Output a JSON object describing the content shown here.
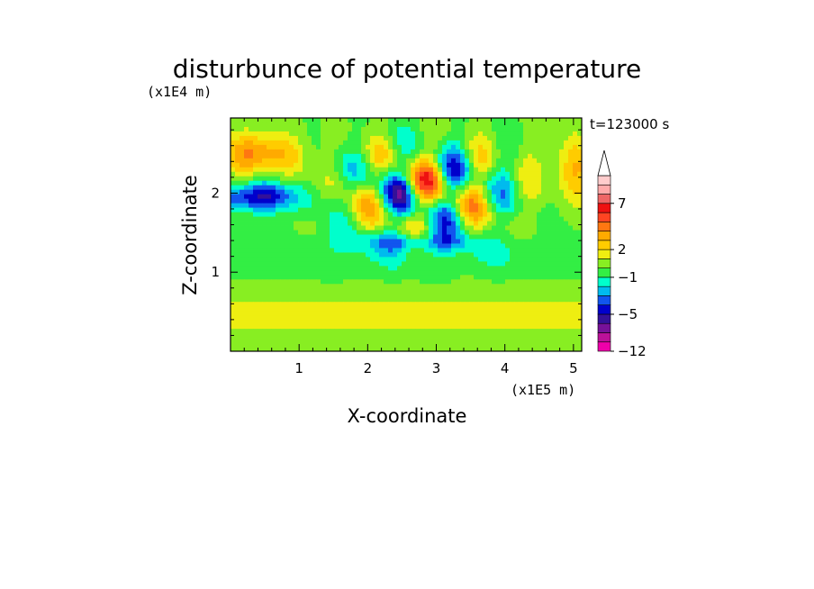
{
  "chart_data": {
    "type": "heatmap",
    "title": "disturbunce of potential temperature",
    "time_label": "t=123000 s",
    "x_axis": {
      "label": "X-coordinate",
      "unit": "(x1E5 m)",
      "range": [
        0,
        5.12
      ],
      "ticks": [
        1,
        2,
        3,
        4,
        5
      ],
      "tick_labels": [
        "1",
        "2",
        "3",
        "4",
        "5"
      ]
    },
    "y_axis": {
      "label": "Z-coordinate",
      "unit": "(x1E4 m)",
      "range": [
        0,
        2.95
      ],
      "ticks": [
        1,
        2
      ],
      "tick_labels": [
        "1",
        "2"
      ]
    },
    "colorbar": {
      "levels": [
        -12,
        -10,
        -8,
        -6,
        -5,
        -4,
        -3,
        -2,
        -1,
        0,
        1,
        2,
        3,
        4,
        5,
        6,
        7,
        8,
        9
      ],
      "colors": [
        "#ee00aa",
        "#bb1199",
        "#771199",
        "#331199",
        "#0000cc",
        "#1155ee",
        "#00bbee",
        "#00ffcc",
        "#33ee44",
        "#88ee22",
        "#eeee11",
        "#ffcc00",
        "#ffaa00",
        "#ff7711",
        "#ff4422",
        "#ee1111",
        "#ee6666",
        "#ffaaaa",
        "#ffcccc"
      ],
      "labels": [
        {
          "value": -12,
          "text": "−12"
        },
        {
          "value": -5,
          "text": "−5"
        },
        {
          "value": -1,
          "text": "−1"
        },
        {
          "value": 2,
          "text": "2"
        },
        {
          "value": 7,
          "text": "7"
        }
      ],
      "extend": "max"
    }
  }
}
